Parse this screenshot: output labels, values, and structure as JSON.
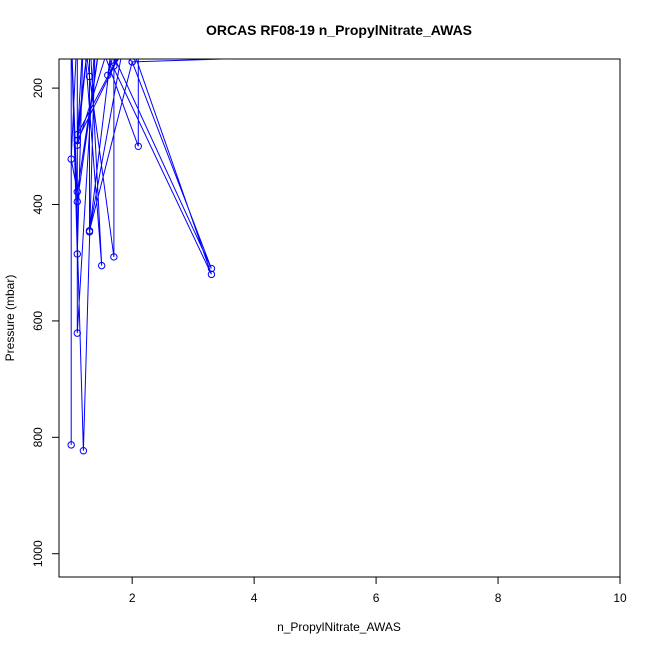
{
  "chart_data": {
    "type": "line",
    "title": "ORCAS RF08-19 n_PropylNitrate_AWAS",
    "xlabel": "n_PropylNitrate_AWAS",
    "ylabel": "Pressure (mbar)",
    "xlim": [
      0.8,
      10.0
    ],
    "ylim": [
      1040,
      150
    ],
    "y_reversed": true,
    "xticks": [
      2,
      4,
      6,
      8,
      10
    ],
    "yticks": [
      200,
      400,
      600,
      800,
      1000
    ],
    "grid": false,
    "marker": "open-circle",
    "series": [
      {
        "color": "#0000ff",
        "points": [
          {
            "x": 1.0,
            "y": 813
          },
          {
            "x": 1.0,
            "y": 100
          },
          {
            "x": 1.2,
            "y": 823
          },
          {
            "x": 1.4,
            "y": 100
          },
          {
            "x": 1.1,
            "y": 621
          },
          {
            "x": 1.1,
            "y": 100
          },
          {
            "x": 1.0,
            "y": 322
          },
          {
            "x": 1.1,
            "y": 378
          },
          {
            "x": 1.5,
            "y": 100
          },
          {
            "x": 1.1,
            "y": 395
          },
          {
            "x": 1.0,
            "y": 100
          },
          {
            "x": 1.1,
            "y": 485
          },
          {
            "x": 1.2,
            "y": 100
          },
          {
            "x": 1.1,
            "y": 290
          },
          {
            "x": 2.0,
            "y": 100
          },
          {
            "x": 1.1,
            "y": 280
          },
          {
            "x": 1.3,
            "y": 100
          },
          {
            "x": 1.1,
            "y": 298
          },
          {
            "x": 1.7,
            "y": 100
          },
          {
            "x": 1.3,
            "y": 447
          },
          {
            "x": 1.3,
            "y": 100
          },
          {
            "x": 1.5,
            "y": 505
          },
          {
            "x": 1.2,
            "y": 100
          },
          {
            "x": 1.3,
            "y": 180
          },
          {
            "x": 1.7,
            "y": 490
          },
          {
            "x": 1.7,
            "y": 100
          },
          {
            "x": 1.6,
            "y": 178
          },
          {
            "x": 1.8,
            "y": 100
          },
          {
            "x": 1.7,
            "y": 162
          },
          {
            "x": 2.1,
            "y": 100
          },
          {
            "x": 2.1,
            "y": 300
          },
          {
            "x": 1.4,
            "y": 100
          },
          {
            "x": 3.3,
            "y": 520
          },
          {
            "x": 1.9,
            "y": 100
          },
          {
            "x": 1.3,
            "y": 445
          },
          {
            "x": 2.0,
            "y": 155
          },
          {
            "x": 3.3,
            "y": 510
          },
          {
            "x": 1.5,
            "y": 100
          },
          {
            "x": 2.0,
            "y": 155
          },
          {
            "x": 5.0,
            "y": 145
          }
        ]
      }
    ]
  }
}
